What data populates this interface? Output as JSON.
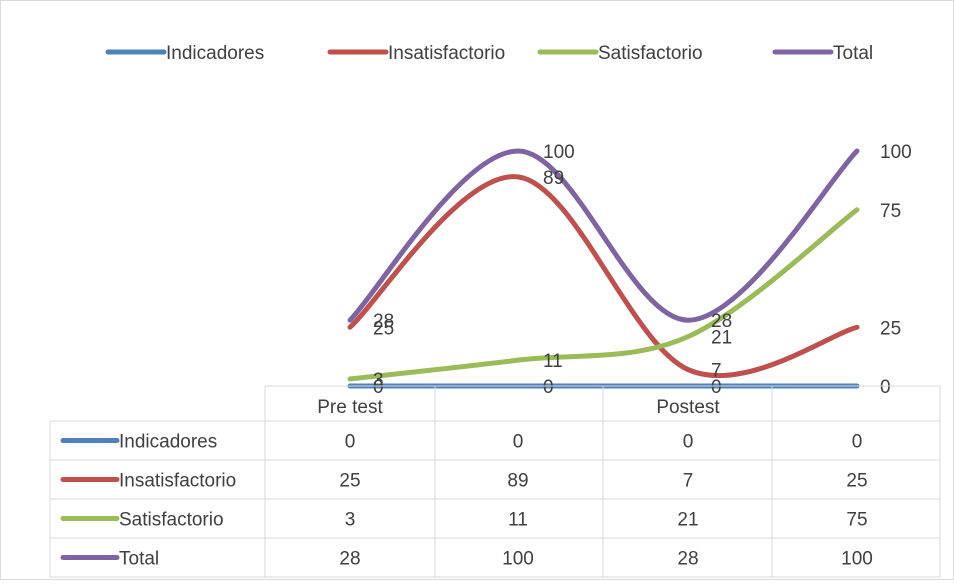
{
  "chart_data": {
    "type": "line",
    "categories": [
      "Pre test",
      "",
      "Postest",
      ""
    ],
    "series": [
      {
        "name": "Indicadores",
        "values": [
          0,
          0,
          0,
          0
        ],
        "color": "#4F81BD"
      },
      {
        "name": "Insatisfactorio",
        "values": [
          25,
          89,
          7,
          25
        ],
        "color": "#C0504D"
      },
      {
        "name": "Satisfactorio",
        "values": [
          3,
          11,
          21,
          75
        ],
        "color": "#9BBB59"
      },
      {
        "name": "Total",
        "values": [
          28,
          100,
          28,
          100
        ],
        "color": "#8064A2"
      }
    ],
    "smooth": true,
    "ylim": [
      0,
      100
    ],
    "legend_position": "top",
    "data_table": true,
    "data_labels": true
  }
}
